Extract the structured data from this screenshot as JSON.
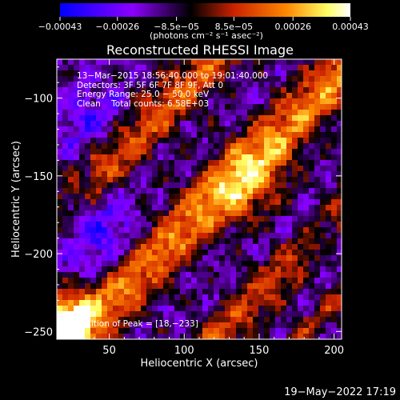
{
  "chart_data": {
    "type": "heatmap",
    "title": "Reconstructed RHESSI Image",
    "xlabel": "Heliocentric X (arcsec)",
    "ylabel": "Heliocentric Y (arcsec)",
    "xlim": [
      15,
      205
    ],
    "ylim": [
      -255,
      -75
    ],
    "x_ticks": [
      50,
      100,
      150,
      200
    ],
    "y_ticks": [
      -100,
      -150,
      -200,
      -250
    ],
    "x_tick_labels": [
      "50",
      "100",
      "150",
      "200"
    ],
    "y_tick_labels": [
      "−100",
      "−150",
      "−200",
      "−250"
    ],
    "colorbar": {
      "min": -0.00043,
      "max": 0.00043,
      "ticks": [
        -0.00043,
        -0.00026,
        -8.5e-05,
        8.5e-05,
        0.00026,
        0.00043
      ],
      "tick_labels": [
        "−0.00043",
        "−0.00026",
        "−8.5e−05",
        "8.5e−05",
        "0.00026",
        "0.00043"
      ],
      "unit_label": "(photons cm⁻² s⁻¹ asec⁻²)",
      "colors": [
        "#0000ff",
        "#8c00ff",
        "#000000",
        "#cc2200",
        "#ff8800",
        "#ffff66",
        "#ffffff"
      ]
    },
    "annotations": [
      "13−Mar−2015 18:56:40.000 to 19:01:40.000",
      "Detectors: 3F 5F 6F 7F 8F 9F, Att 0",
      "Energy Range: 25.0 − 50.0 keV",
      "Clean    Total counts: 6.58E+03"
    ],
    "peak_label": "Position of Peak = [18,−233]",
    "peak": [
      18,
      -233
    ]
  },
  "footer": {
    "timestamp": "19−May−2022 17:19"
  }
}
